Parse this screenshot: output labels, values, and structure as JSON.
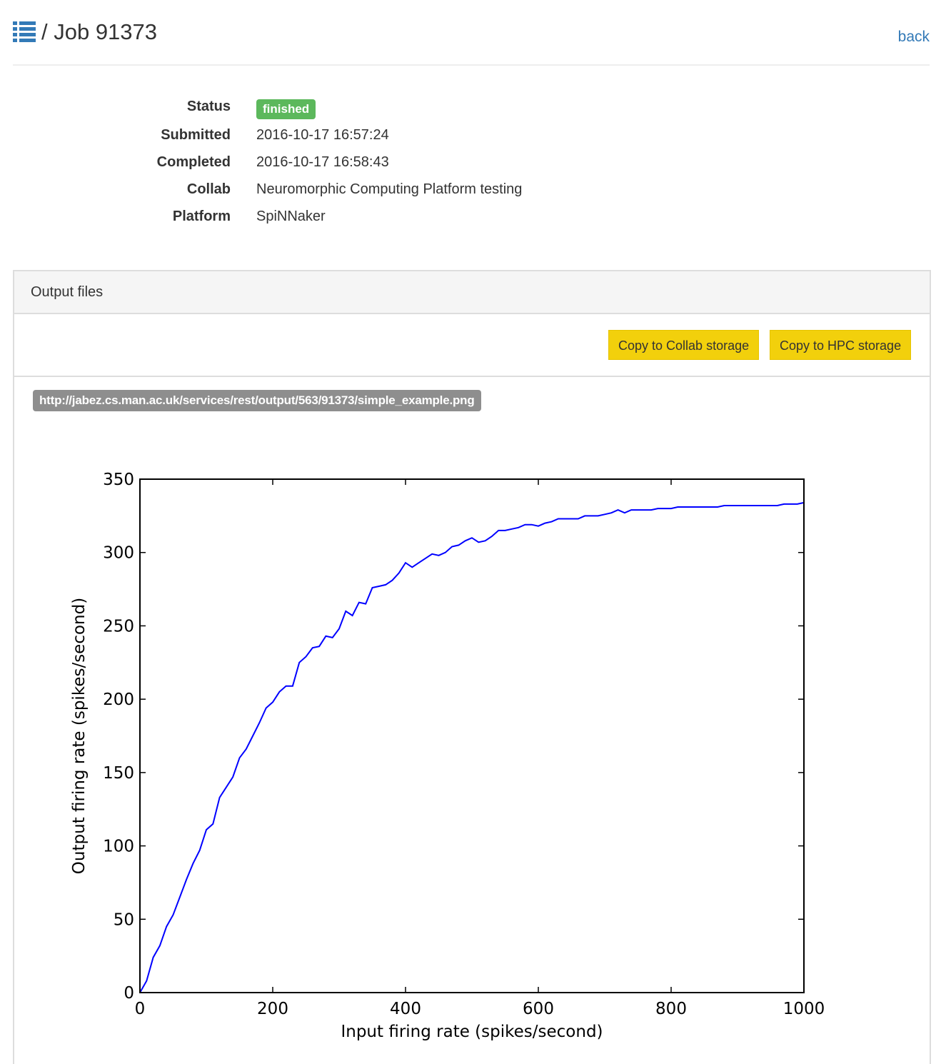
{
  "header": {
    "icon": "list-icon",
    "title": "/ Job 91373",
    "back_label": "back"
  },
  "details": {
    "status_label": "Status",
    "status_value": "finished",
    "status_color": "#5cb85c",
    "submitted_label": "Submitted",
    "submitted_value": "2016-10-17 16:57:24",
    "completed_label": "Completed",
    "completed_value": "2016-10-17 16:58:43",
    "collab_label": "Collab",
    "collab_value": "Neuromorphic Computing Platform testing",
    "platform_label": "Platform",
    "platform_value": "SpiNNaker"
  },
  "output_panel": {
    "heading": "Output files",
    "copy_collab_label": "Copy to Collab storage",
    "copy_hpc_label": "Copy to HPC storage",
    "button_color": "#f2d00c",
    "file_url": "http://jabez.cs.man.ac.uk/services/rest/output/563/91373/simple_example.png"
  },
  "chart_data": {
    "type": "line",
    "title": "",
    "xlabel": "Input firing rate (spikes/second)",
    "ylabel": "Output firing rate (spikes/second)",
    "xlim": [
      0,
      1000
    ],
    "ylim": [
      0,
      350
    ],
    "xticks": [
      0,
      200,
      400,
      600,
      800,
      1000
    ],
    "yticks": [
      0,
      50,
      100,
      150,
      200,
      250,
      300,
      350
    ],
    "grid": false,
    "line_color": "#0000ff",
    "x": [
      0,
      10,
      20,
      30,
      40,
      50,
      60,
      70,
      80,
      90,
      100,
      110,
      120,
      130,
      140,
      150,
      160,
      170,
      180,
      190,
      200,
      210,
      220,
      230,
      240,
      250,
      260,
      270,
      280,
      290,
      300,
      310,
      320,
      330,
      340,
      350,
      360,
      370,
      380,
      390,
      400,
      410,
      420,
      430,
      440,
      450,
      460,
      470,
      480,
      490,
      500,
      510,
      520,
      530,
      540,
      550,
      560,
      570,
      580,
      590,
      600,
      610,
      620,
      630,
      640,
      650,
      660,
      670,
      680,
      690,
      700,
      710,
      720,
      730,
      740,
      750,
      760,
      770,
      780,
      790,
      800,
      810,
      820,
      830,
      840,
      850,
      860,
      870,
      880,
      890,
      900,
      910,
      920,
      930,
      940,
      950,
      960,
      970,
      980,
      990,
      1000
    ],
    "y": [
      0,
      8,
      24,
      32,
      45,
      53,
      65,
      77,
      88,
      97,
      111,
      115,
      133,
      140,
      147,
      160,
      166,
      175,
      184,
      194,
      198,
      205,
      209,
      209,
      225,
      229,
      235,
      236,
      243,
      242,
      248,
      260,
      257,
      266,
      265,
      276,
      277,
      278,
      281,
      286,
      293,
      290,
      293,
      296,
      299,
      298,
      300,
      304,
      305,
      308,
      310,
      307,
      308,
      311,
      315,
      315,
      316,
      317,
      319,
      319,
      318,
      320,
      321,
      323,
      323,
      323,
      323,
      325,
      325,
      325,
      326,
      327,
      329,
      327,
      329,
      329,
      329,
      329,
      330,
      330,
      330,
      331,
      331,
      331,
      331,
      331,
      331,
      331,
      332,
      332,
      332,
      332,
      332,
      332,
      332,
      332,
      332,
      333,
      333,
      333,
      334
    ]
  }
}
